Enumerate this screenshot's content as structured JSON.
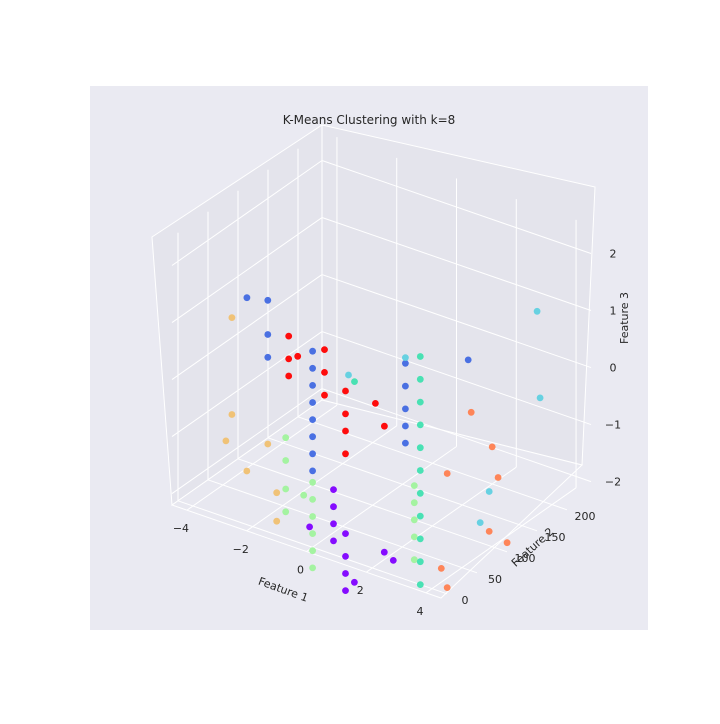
{
  "chart_data": {
    "type": "scatter",
    "projection": "3d",
    "title": "K-Means Clustering with k=8",
    "xlabel": "Feature 1",
    "ylabel": "Feature 2",
    "zlabel": "Feature 3",
    "xlim": [
      -4.5,
      4.5
    ],
    "ylim": [
      -10,
      240
    ],
    "zlim": [
      -2.2,
      2.5
    ],
    "xticks": [
      -4,
      -2,
      0,
      2,
      4
    ],
    "yticks": [
      0,
      50,
      100,
      150,
      200
    ],
    "zticks": [
      -2,
      -1,
      0,
      1,
      2
    ],
    "grid": true,
    "legend": "none",
    "style": {
      "background": "#eaeaf2",
      "gridline": "#ffffff"
    },
    "series": [
      {
        "color": "#4169e1",
        "points": [
          [
            -0.8,
            40,
            0.8
          ],
          [
            -0.8,
            40,
            0.5
          ],
          [
            -0.8,
            40,
            0.2
          ],
          [
            -0.8,
            40,
            -0.1
          ],
          [
            -0.8,
            40,
            -0.4
          ],
          [
            -0.8,
            40,
            -0.7
          ],
          [
            -0.8,
            40,
            -1.0
          ],
          [
            -0.8,
            40,
            -1.3
          ],
          [
            -2.7,
            60,
            1.2
          ],
          [
            -2.7,
            60,
            0.6
          ],
          [
            -2.7,
            60,
            0.2
          ],
          [
            -3.8,
            80,
            0.9
          ],
          [
            1.3,
            90,
            0.6
          ],
          [
            1.3,
            90,
            0.2
          ],
          [
            1.3,
            90,
            -0.2
          ],
          [
            1.3,
            90,
            -0.5
          ],
          [
            1.3,
            90,
            -0.8
          ],
          [
            2.6,
            130,
            0.6
          ]
        ]
      },
      {
        "color": "#ff0000",
        "points": [
          [
            -0.4,
            40,
            0.9
          ],
          [
            -0.4,
            40,
            0.5
          ],
          [
            -0.4,
            40,
            0.1
          ],
          [
            0.3,
            40,
            0.3
          ],
          [
            0.3,
            40,
            -0.1
          ],
          [
            0.3,
            40,
            -0.4
          ],
          [
            0.3,
            40,
            -0.8
          ],
          [
            -2.0,
            60,
            0.7
          ],
          [
            -2.0,
            60,
            0.3
          ],
          [
            -2.0,
            60,
            0.0
          ],
          [
            1.2,
            60,
            -0.3
          ],
          [
            1.0,
            55,
            0.1
          ],
          [
            -1.7,
            60,
            0.4
          ]
        ]
      },
      {
        "color": "#8000ff",
        "points": [
          [
            -0.1,
            40,
            -1.5
          ],
          [
            -0.1,
            40,
            -1.8
          ],
          [
            -0.1,
            40,
            -2.1
          ],
          [
            -0.1,
            40,
            -2.4
          ],
          [
            0.3,
            40,
            -2.2
          ],
          [
            0.3,
            40,
            -2.6
          ],
          [
            0.3,
            40,
            -2.9
          ],
          [
            0.3,
            40,
            -3.2
          ],
          [
            -0.9,
            40,
            -2.3
          ],
          [
            1.4,
            50,
            -2.4
          ],
          [
            1.5,
            60,
            -2.6
          ],
          [
            0.6,
            40,
            -3.0
          ]
        ]
      },
      {
        "color": "#a0f39c",
        "points": [
          [
            -0.8,
            40,
            -1.5
          ],
          [
            -0.8,
            40,
            -1.8
          ],
          [
            -0.8,
            40,
            -2.1
          ],
          [
            -0.8,
            40,
            -2.4
          ],
          [
            -0.8,
            40,
            -2.7
          ],
          [
            -0.8,
            40,
            -3.0
          ],
          [
            -2.1,
            60,
            -1.1
          ],
          [
            -2.1,
            60,
            -1.5
          ],
          [
            -2.1,
            60,
            -2.0
          ],
          [
            -2.1,
            60,
            -2.4
          ],
          [
            -1.5,
            60,
            -2.0
          ],
          [
            1.4,
            100,
            -1.6
          ],
          [
            1.4,
            100,
            -1.9
          ],
          [
            1.4,
            100,
            -2.2
          ],
          [
            1.4,
            100,
            -2.5
          ],
          [
            1.4,
            100,
            -2.9
          ]
        ]
      },
      {
        "color": "#40e0b0",
        "points": [
          [
            1.6,
            100,
            0.7
          ],
          [
            1.6,
            100,
            0.3
          ],
          [
            1.6,
            100,
            -0.1
          ],
          [
            1.6,
            100,
            -0.5
          ],
          [
            1.6,
            100,
            -0.9
          ],
          [
            1.6,
            100,
            -1.3
          ],
          [
            1.6,
            100,
            -1.7
          ],
          [
            1.6,
            100,
            -2.1
          ],
          [
            1.6,
            100,
            -2.5
          ],
          [
            1.6,
            100,
            -2.9
          ],
          [
            1.6,
            100,
            -3.3
          ],
          [
            0.2,
            60,
            0.3
          ]
        ]
      },
      {
        "color": "#f0c070",
        "points": [
          [
            -3.5,
            40,
            0.9
          ],
          [
            -3.5,
            40,
            -0.8
          ],
          [
            -3.7,
            40,
            -1.3
          ],
          [
            -2.3,
            40,
            -1.1
          ],
          [
            -2.0,
            40,
            -1.9
          ],
          [
            -2.0,
            40,
            -2.4
          ],
          [
            -3.0,
            40,
            -1.7
          ]
        ]
      },
      {
        "color": "#ff7f50",
        "points": [
          [
            2.7,
            130,
            -0.3
          ],
          [
            3.0,
            150,
            -1.0
          ],
          [
            3.2,
            150,
            -1.5
          ],
          [
            2.9,
            150,
            -2.5
          ],
          [
            3.3,
            160,
            -2.7
          ],
          [
            2.3,
            110,
            -1.3
          ],
          [
            2.1,
            110,
            -3.0
          ],
          [
            2.3,
            110,
            -3.3
          ]
        ]
      },
      {
        "color": "#60d0e0",
        "points": [
          [
            3.5,
            200,
            1.1
          ],
          [
            3.6,
            200,
            -0.4
          ],
          [
            2.9,
            150,
            -1.8
          ],
          [
            2.6,
            150,
            -2.4
          ],
          [
            0.4,
            40,
            0.6
          ],
          [
            1.3,
            90,
            0.7
          ]
        ]
      }
    ]
  }
}
